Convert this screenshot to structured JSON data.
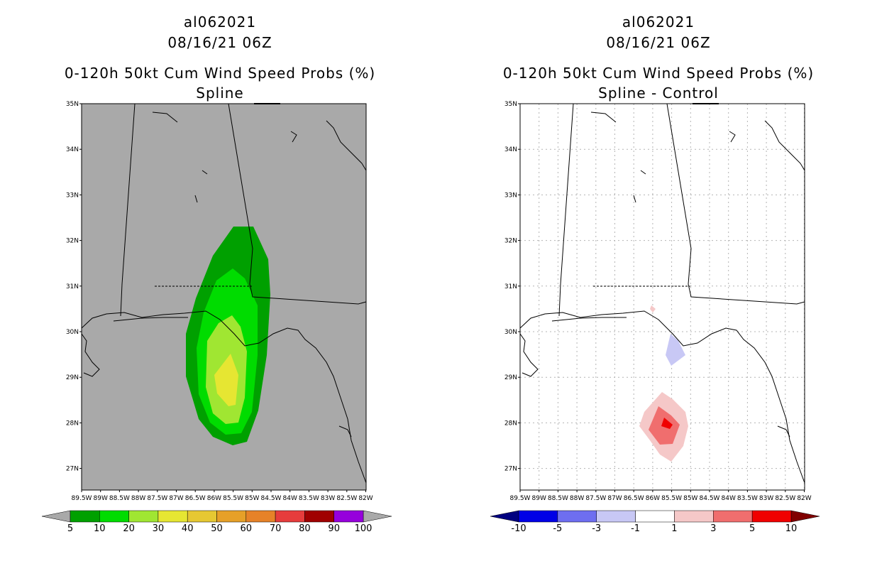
{
  "left_panel": {
    "storm_id": "al062021",
    "datetime": "08/16/21 06Z",
    "product": "0-120h 50kt Cum Wind Speed Probs (%)",
    "subtitle": "Spline",
    "colorbar_labels": [
      "5",
      "10",
      "20",
      "30",
      "40",
      "50",
      "60",
      "70",
      "80",
      "90",
      "100"
    ],
    "colorbar_colors": [
      "#00a000",
      "#00dc00",
      "#a0e632",
      "#e6e632",
      "#e6c832",
      "#e6a028",
      "#e68228",
      "#e63c3c",
      "#a00000",
      "#9600dc"
    ]
  },
  "right_panel": {
    "storm_id": "al062021",
    "datetime": "08/16/21 06Z",
    "product": "0-120h 50kt Cum Wind Speed Probs (%)",
    "subtitle": "Spline - Control",
    "colorbar_labels": [
      "-10",
      "-5",
      "-3",
      "-1",
      "1",
      "3",
      "5",
      "10"
    ],
    "colorbar_colors": [
      "#0000e6",
      "#6e6ef0",
      "#c8c8f5",
      "#ffffff",
      "#f5c8c8",
      "#f06e6e",
      "#f00000"
    ]
  },
  "axes": {
    "lat_labels": [
      "35N",
      "34N",
      "33N",
      "32N",
      "31N",
      "30N",
      "29N",
      "28N",
      "27N"
    ],
    "lon_labels": [
      "89.5W",
      "89W",
      "88.5W",
      "88W",
      "87.5W",
      "87W",
      "86.5W",
      "86W",
      "85.5W",
      "85W",
      "84.5W",
      "84W",
      "83.5W",
      "83W",
      "82.5W",
      "82W"
    ]
  },
  "colors": {
    "ocean_bg": "#a9a9a9",
    "grid": "#b4b4b4"
  }
}
